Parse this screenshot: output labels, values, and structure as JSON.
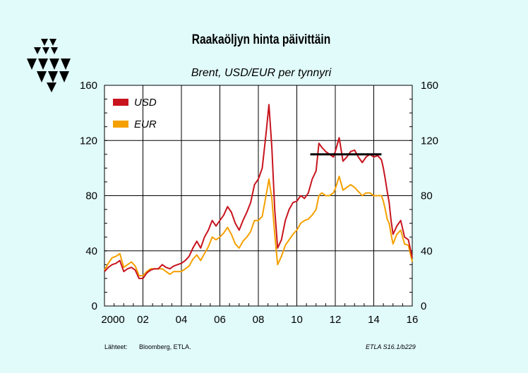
{
  "title": "Raakaöljyn hinta päivittäin",
  "subtitle": "Brent, USD/EUR per tynnyri",
  "footer": {
    "source_label": "Lähteet:",
    "source_text": "Bloomberg, ETLA.",
    "code": "ETLA S16.1/b229"
  },
  "chart_data": {
    "type": "line",
    "title": "Raakaöljyn hinta päivittäin",
    "subtitle": "Brent, USD/EUR per tynnyri",
    "xlabel": "",
    "ylabel": "",
    "xlim": [
      2000.0,
      2016.0
    ],
    "ylim": [
      0,
      160
    ],
    "grid": true,
    "legend": "top-left",
    "x_ticks": [
      {
        "value": 2000,
        "label": "2000"
      },
      {
        "value": 2002,
        "label": "02"
      },
      {
        "value": 2004,
        "label": "04"
      },
      {
        "value": 2006,
        "label": "06"
      },
      {
        "value": 2008,
        "label": "08"
      },
      {
        "value": 2010,
        "label": "10"
      },
      {
        "value": 2012,
        "label": "12"
      },
      {
        "value": 2014,
        "label": "14"
      },
      {
        "value": 2016,
        "label": "16"
      }
    ],
    "y_ticks": [
      {
        "value": 0,
        "label": "0"
      },
      {
        "value": 40,
        "label": "40"
      },
      {
        "value": 80,
        "label": "80"
      },
      {
        "value": 120,
        "label": "120"
      },
      {
        "value": 160,
        "label": "160"
      }
    ],
    "series": [
      {
        "name": "USD",
        "color": "#c8141e",
        "x": [
          2000.0,
          2000.2,
          2000.4,
          2000.6,
          2000.8,
          2001.0,
          2001.2,
          2001.4,
          2001.6,
          2001.8,
          2002.0,
          2002.2,
          2002.4,
          2002.6,
          2002.8,
          2003.0,
          2003.2,
          2003.4,
          2003.6,
          2003.8,
          2004.0,
          2004.2,
          2004.4,
          2004.6,
          2004.8,
          2005.0,
          2005.2,
          2005.4,
          2005.6,
          2005.8,
          2006.0,
          2006.2,
          2006.4,
          2006.6,
          2006.8,
          2007.0,
          2007.2,
          2007.4,
          2007.6,
          2007.8,
          2008.0,
          2008.2,
          2008.4,
          2008.55,
          2008.7,
          2008.85,
          2009.0,
          2009.2,
          2009.4,
          2009.6,
          2009.8,
          2010.0,
          2010.2,
          2010.4,
          2010.6,
          2010.8,
          2011.0,
          2011.15,
          2011.3,
          2011.5,
          2011.7,
          2011.9,
          2012.0,
          2012.2,
          2012.4,
          2012.6,
          2012.8,
          2013.0,
          2013.2,
          2013.4,
          2013.6,
          2013.8,
          2014.0,
          2014.2,
          2014.4,
          2014.5,
          2014.6,
          2014.7,
          2014.8,
          2014.9,
          2015.0,
          2015.2,
          2015.4,
          2015.6,
          2015.8,
          2016.0
        ],
        "values": [
          25,
          28,
          30,
          31,
          33,
          25,
          27,
          28,
          26,
          20,
          20,
          24,
          26,
          27,
          27,
          30,
          28,
          27,
          29,
          30,
          31,
          33,
          36,
          42,
          47,
          42,
          50,
          55,
          62,
          58,
          62,
          66,
          72,
          68,
          60,
          55,
          62,
          68,
          75,
          88,
          92,
          100,
          125,
          146,
          115,
          70,
          42,
          48,
          62,
          70,
          75,
          76,
          80,
          78,
          82,
          92,
          98,
          118,
          115,
          112,
          110,
          108,
          112,
          122,
          105,
          108,
          112,
          113,
          108,
          104,
          108,
          110,
          108,
          109,
          106,
          100,
          92,
          83,
          75,
          62,
          52,
          58,
          62,
          50,
          48,
          35
        ]
      },
      {
        "name": "EUR",
        "color": "#f5a000",
        "x": [
          2000.0,
          2000.2,
          2000.4,
          2000.6,
          2000.8,
          2001.0,
          2001.2,
          2001.4,
          2001.6,
          2001.8,
          2002.0,
          2002.2,
          2002.4,
          2002.6,
          2002.8,
          2003.0,
          2003.2,
          2003.4,
          2003.6,
          2003.8,
          2004.0,
          2004.2,
          2004.4,
          2004.6,
          2004.8,
          2005.0,
          2005.2,
          2005.4,
          2005.6,
          2005.8,
          2006.0,
          2006.2,
          2006.4,
          2006.6,
          2006.8,
          2007.0,
          2007.2,
          2007.4,
          2007.6,
          2007.8,
          2008.0,
          2008.2,
          2008.4,
          2008.55,
          2008.7,
          2008.85,
          2009.0,
          2009.2,
          2009.4,
          2009.6,
          2009.8,
          2010.0,
          2010.2,
          2010.4,
          2010.6,
          2010.8,
          2011.0,
          2011.15,
          2011.3,
          2011.5,
          2011.7,
          2011.9,
          2012.0,
          2012.2,
          2012.4,
          2012.6,
          2012.8,
          2013.0,
          2013.2,
          2013.4,
          2013.6,
          2013.8,
          2014.0,
          2014.2,
          2014.4,
          2014.5,
          2014.6,
          2014.7,
          2014.8,
          2014.9,
          2015.0,
          2015.2,
          2015.4,
          2015.6,
          2015.8,
          2016.0
        ],
        "values": [
          26,
          31,
          35,
          36,
          38,
          28,
          30,
          32,
          29,
          22,
          22,
          25,
          27,
          27,
          27,
          27,
          25,
          23,
          25,
          25,
          25,
          27,
          29,
          34,
          37,
          33,
          38,
          43,
          50,
          48,
          50,
          53,
          57,
          52,
          45,
          42,
          47,
          50,
          54,
          62,
          62,
          65,
          80,
          92,
          78,
          52,
          30,
          36,
          44,
          48,
          52,
          55,
          60,
          62,
          63,
          66,
          70,
          80,
          82,
          80,
          80,
          82,
          85,
          94,
          84,
          86,
          88,
          86,
          83,
          80,
          82,
          82,
          80,
          80,
          80,
          76,
          70,
          63,
          60,
          52,
          45,
          52,
          55,
          45,
          44,
          32
        ]
      }
    ],
    "reference_line": {
      "x_start": 2010.7,
      "x_end": 2014.4,
      "value": 110,
      "color": "#000000"
    },
    "axis_colors": {
      "plot_background": "#ffffff",
      "page_background": "#e1fafa"
    }
  }
}
